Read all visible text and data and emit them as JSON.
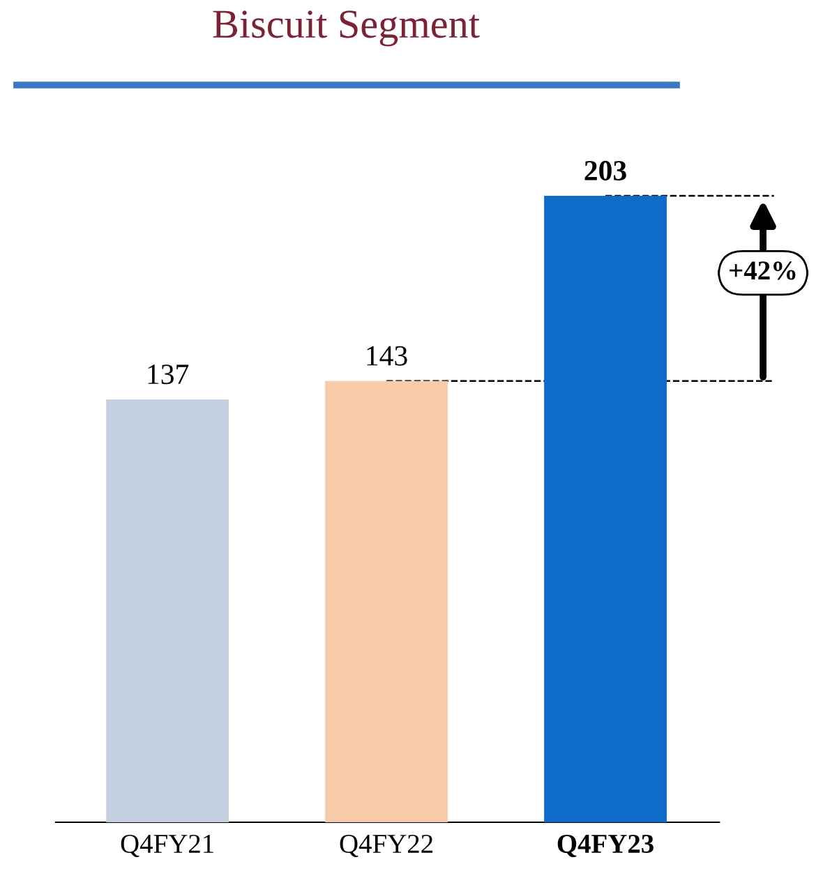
{
  "chart_data": {
    "type": "bar",
    "title": "Biscuit Segment",
    "categories": [
      "Q4FY21",
      "Q4FY22",
      "Q4FY23"
    ],
    "values": [
      137,
      143,
      203
    ],
    "colors": [
      "#c4cfe0",
      "#f7cba9",
      "#0f6bc8"
    ],
    "data_labels": true,
    "ref_lines": [
      {
        "axis": "y",
        "value": 143,
        "line_style": "dashed",
        "color": "#000000"
      },
      {
        "axis": "y",
        "value": 203,
        "line_style": "dashed",
        "color": "#000000"
      }
    ],
    "annotations": [
      "+42%"
    ],
    "grid": false
  }
}
